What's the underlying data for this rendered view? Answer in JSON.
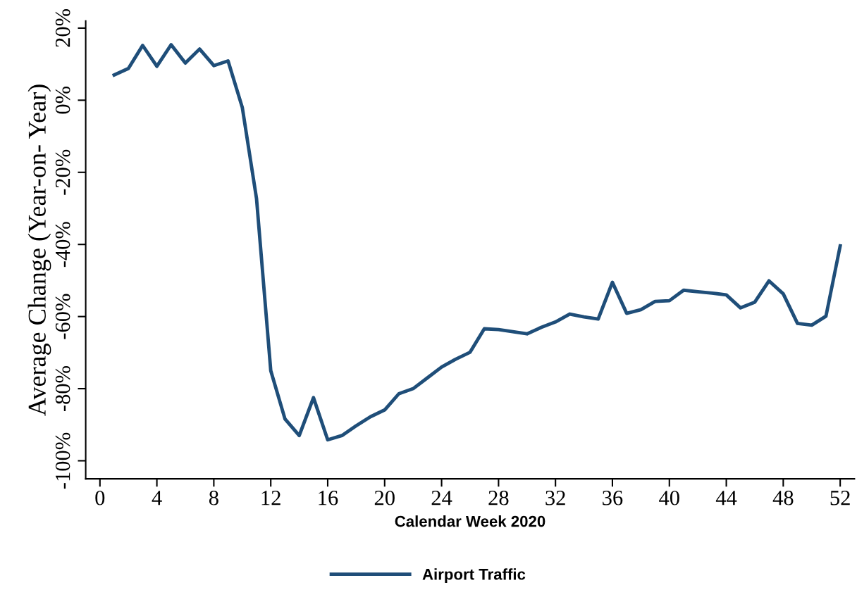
{
  "chart_data": {
    "type": "line",
    "xlabel": "Calendar Week 2020",
    "ylabel": "Average Change (Year-on- Year)",
    "x": [
      1,
      2,
      3,
      4,
      5,
      6,
      7,
      8,
      9,
      10,
      11,
      12,
      13,
      14,
      15,
      16,
      17,
      18,
      19,
      20,
      21,
      22,
      23,
      24,
      25,
      26,
      27,
      28,
      29,
      30,
      31,
      32,
      33,
      34,
      35,
      36,
      37,
      38,
      39,
      40,
      41,
      42,
      43,
      44,
      45,
      46,
      47,
      48,
      49,
      50,
      51,
      52
    ],
    "series": [
      {
        "name": "Airport Traffic",
        "color": "#1f4e79",
        "values": [
          7,
          8.8,
          15.2,
          9.4,
          15.4,
          10.3,
          14.2,
          9.6,
          10.9,
          -2,
          -27.3,
          -75,
          -88.4,
          -93,
          -82.5,
          -94.2,
          -93,
          -90.3,
          -87.8,
          -85.9,
          -81.4,
          -80,
          -77,
          -74,
          -71.8,
          -69.9,
          -63.4,
          -63.6,
          -64.2,
          -64.8,
          -63,
          -61.5,
          -59.3,
          -60.1,
          -60.7,
          -50.5,
          -59.1,
          -58.1,
          -55.8,
          -55.6,
          -52.7,
          -53.1,
          -53.5,
          -54,
          -57.6,
          -56,
          -50.1,
          -53.7,
          -61.9,
          -62.4,
          -59.9,
          -40.4
        ]
      }
    ],
    "xlim": [
      -1,
      53
    ],
    "xticks": [
      0,
      4,
      8,
      12,
      16,
      20,
      24,
      28,
      32,
      36,
      40,
      44,
      48,
      52
    ],
    "ylim": [
      -105,
      22
    ],
    "yticks": [
      {
        "value": -100,
        "label": "-100%"
      },
      {
        "value": -80,
        "label": "-80%"
      },
      {
        "value": -60,
        "label": "-60%"
      },
      {
        "value": -40,
        "label": "-40%"
      },
      {
        "value": -20,
        "label": "-20%"
      },
      {
        "value": 0,
        "label": "0%"
      },
      {
        "value": 20,
        "label": "20%"
      }
    ],
    "grid": false,
    "legend": "bottom",
    "line_style": "solid",
    "marker": "none"
  }
}
